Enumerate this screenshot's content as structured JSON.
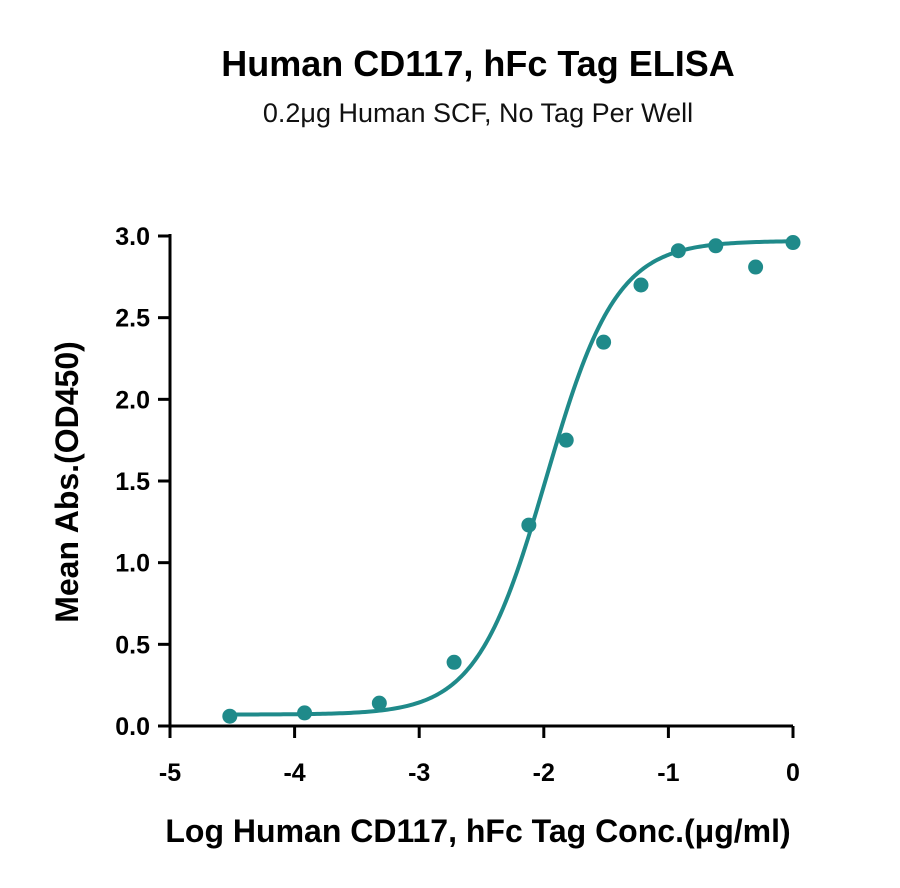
{
  "chart_data": {
    "type": "scatter",
    "title": "Human CD117, hFc Tag ELISA",
    "subtitle": "0.2μg Human SCF, No Tag Per Well",
    "xlabel": "Log Human CD117, hFc Tag Conc.(μg/ml)",
    "ylabel": "Mean Abs.(OD450)",
    "xlim": [
      -5,
      0
    ],
    "ylim": [
      0,
      3.0
    ],
    "x_ticks": [
      -5,
      -4,
      -3,
      -2,
      -1,
      0
    ],
    "x_tick_labels": [
      "-5",
      "-4",
      "-3",
      "-2",
      "-1",
      "0"
    ],
    "y_ticks": [
      0,
      0.5,
      1.0,
      1.5,
      2.0,
      2.5,
      3.0
    ],
    "y_tick_labels": [
      "0.0",
      "0.5",
      "1.0",
      "1.5",
      "2.0",
      "2.5",
      "3.0"
    ],
    "grid": false,
    "legend": "none",
    "color": "#1f8a8a",
    "series": [
      {
        "x": [
          -4.52,
          -3.92,
          -3.32,
          -2.72,
          -2.12,
          -1.82,
          -1.52,
          -1.22,
          -0.92,
          -0.62,
          -0.3,
          0.0
        ],
        "y": [
          0.06,
          0.08,
          0.14,
          0.39,
          1.23,
          1.75,
          2.35,
          2.7,
          2.91,
          2.94,
          2.81,
          2.96
        ]
      }
    ],
    "fit": {
      "model": "4PL",
      "bottom": 0.07,
      "top": 2.97,
      "logEC50": -1.98,
      "hill": 1.55
    }
  }
}
